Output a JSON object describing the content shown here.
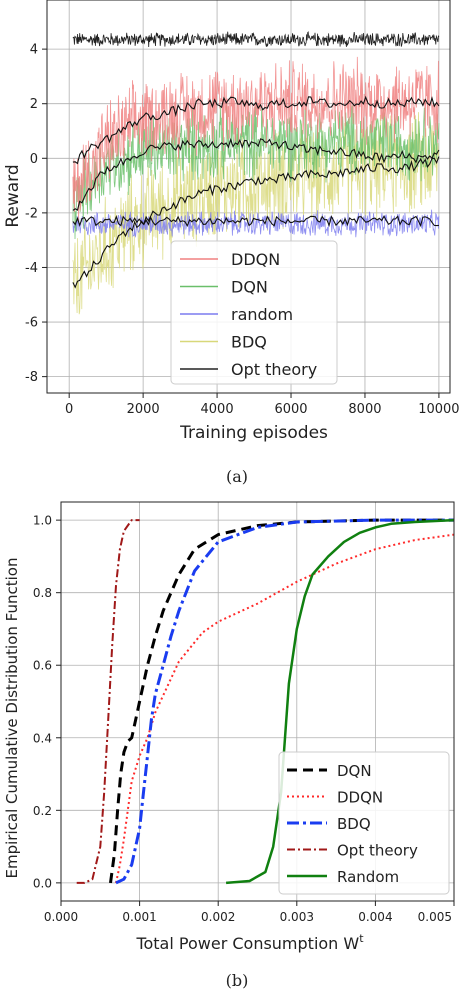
{
  "chart_data": [
    {
      "id": "a",
      "type": "line",
      "caption": "(a)",
      "xlabel": "Training episodes",
      "ylabel": "Reward",
      "xlim": [
        -600,
        10300
      ],
      "ylim": [
        -8.6,
        5.8
      ],
      "xticks": [
        0,
        2000,
        4000,
        6000,
        8000,
        10000
      ],
      "yticks": [
        -8,
        -6,
        -4,
        -2,
        0,
        2,
        4
      ],
      "grid": true,
      "legend_position": "lower-center",
      "series": [
        {
          "name": "DDQN",
          "color": "#f08080",
          "raw_mean": [
            -1.5,
            -0.5,
            0.5,
            1.0,
            1.4,
            1.6,
            1.7,
            1.8,
            1.9,
            2.0,
            2.0,
            2.0,
            2.1,
            2.1,
            2.1,
            2.1,
            2.1,
            2.1,
            2.1,
            2.1,
            2.1
          ],
          "raw_noise": 1.5,
          "smooth": [
            -0.3,
            0.3,
            0.7,
            1.1,
            1.5,
            1.6,
            1.8,
            2.0,
            2.0,
            2.1,
            1.9,
            2.0,
            2.0,
            2.1,
            2.0,
            2.0,
            2.1,
            2.0,
            2.0,
            2.1,
            2.0
          ]
        },
        {
          "name": "DQN",
          "color": "#6abf6a",
          "raw_mean": [
            -2.0,
            -1.0,
            -0.3,
            0.0,
            0.2,
            0.3,
            0.4,
            0.5,
            0.5,
            0.6,
            0.6,
            0.6,
            0.6,
            0.6,
            0.6,
            0.6,
            0.6,
            0.6,
            0.6,
            0.6,
            0.6
          ],
          "raw_noise": 1.3,
          "smooth": [
            -2.2,
            -1.2,
            -0.4,
            -0.1,
            0.3,
            0.4,
            0.5,
            0.5,
            0.5,
            0.6,
            0.5,
            0.6,
            0.4,
            0.3,
            0.3,
            0.2,
            0.1,
            0.0,
            0.1,
            0.0,
            0.2
          ]
        },
        {
          "name": "random",
          "color": "#7b7bef",
          "raw_mean": [
            -2.4,
            -2.4,
            -2.4,
            -2.4,
            -2.4,
            -2.4,
            -2.4,
            -2.4,
            -2.4,
            -2.4,
            -2.4,
            -2.4,
            -2.4,
            -2.4,
            -2.4,
            -2.4,
            -2.4,
            -2.4,
            -2.4,
            -2.4,
            -2.4
          ],
          "raw_noise": 0.45,
          "smooth": [
            -2.3,
            -2.3,
            -2.3,
            -2.3,
            -2.3,
            -2.3,
            -2.3,
            -2.3,
            -2.3,
            -2.3,
            -2.3,
            -2.3,
            -2.3,
            -2.3,
            -2.3,
            -2.3,
            -2.3,
            -2.3,
            -2.3,
            -2.3,
            -2.3
          ]
        },
        {
          "name": "BDQ",
          "color": "#d8d87a",
          "raw_mean": [
            -5.0,
            -4.0,
            -3.3,
            -2.7,
            -2.2,
            -1.8,
            -1.6,
            -1.3,
            -1.1,
            -1.0,
            -0.9,
            -0.8,
            -0.7,
            -0.6,
            -0.5,
            -0.5,
            -0.4,
            -0.3,
            -0.3,
            -0.2,
            -0.2
          ],
          "raw_noise": 1.8,
          "smooth": [
            -4.8,
            -4.2,
            -3.4,
            -2.7,
            -2.3,
            -1.9,
            -1.6,
            -1.3,
            -1.1,
            -1.0,
            -0.8,
            -0.8,
            -0.7,
            -0.6,
            -0.6,
            -0.5,
            -0.4,
            -0.3,
            -0.4,
            -0.2,
            -0.1
          ]
        },
        {
          "name": "Opt theory",
          "color": "#222222",
          "raw_mean": [
            4.35,
            4.35,
            4.35,
            4.35,
            4.35,
            4.35,
            4.35,
            4.35,
            4.35,
            4.35,
            4.35,
            4.35,
            4.35,
            4.35,
            4.35,
            4.35,
            4.35,
            4.35,
            4.35,
            4.35,
            4.35
          ],
          "raw_noise": 0.25,
          "smooth": []
        }
      ]
    },
    {
      "id": "b",
      "type": "line",
      "caption": "(b)",
      "xlabel": "Total Power Consumption W",
      "xlabel_sup": "t",
      "ylabel": "Empirical Cumulative Distribution Function",
      "xlim": [
        0,
        0.005
      ],
      "ylim": [
        -0.05,
        1.05
      ],
      "xticks": [
        0.0,
        0.001,
        0.002,
        0.003,
        0.004,
        0.005
      ],
      "xtick_labels": [
        "0.000",
        "0.001",
        "0.002",
        "0.003",
        "0.004",
        "0.005"
      ],
      "yticks": [
        0.0,
        0.2,
        0.4,
        0.6,
        0.8,
        1.0
      ],
      "ytick_labels": [
        "0.0",
        "0.2",
        "0.4",
        "0.6",
        "0.8",
        "1.0"
      ],
      "grid": true,
      "legend_position": "lower-right",
      "series": [
        {
          "name": "DQN",
          "color": "#000000",
          "dash": "10,6",
          "width": 3,
          "x": [
            0.00063,
            0.00068,
            0.00072,
            0.00076,
            0.0008,
            0.00085,
            0.0009,
            0.00095,
            0.001,
            0.0011,
            0.0012,
            0.0013,
            0.0015,
            0.0017,
            0.002,
            0.0025,
            0.003,
            0.004,
            0.005
          ],
          "y": [
            0.0,
            0.08,
            0.2,
            0.3,
            0.36,
            0.39,
            0.4,
            0.45,
            0.5,
            0.6,
            0.68,
            0.75,
            0.85,
            0.92,
            0.96,
            0.985,
            0.995,
            1.0,
            1.0
          ]
        },
        {
          "name": "DDQN",
          "color": "#ff2a2a",
          "dash": "2,3",
          "width": 2,
          "x": [
            0.0007,
            0.00075,
            0.0008,
            0.00085,
            0.0009,
            0.001,
            0.0011,
            0.0012,
            0.0015,
            0.0018,
            0.002,
            0.0025,
            0.003,
            0.0035,
            0.004,
            0.0045,
            0.005
          ],
          "y": [
            0.0,
            0.05,
            0.12,
            0.2,
            0.28,
            0.35,
            0.4,
            0.47,
            0.61,
            0.69,
            0.72,
            0.77,
            0.83,
            0.88,
            0.92,
            0.945,
            0.96
          ]
        },
        {
          "name": "BDQ",
          "color": "#1a3cf0",
          "dash": "12,4,3,4",
          "width": 3,
          "x": [
            0.0007,
            0.0008,
            0.0009,
            0.001,
            0.00105,
            0.0011,
            0.00115,
            0.0012,
            0.0013,
            0.0014,
            0.0015,
            0.0017,
            0.002,
            0.0025,
            0.003,
            0.004,
            0.005
          ],
          "y": [
            0.0,
            0.01,
            0.05,
            0.15,
            0.25,
            0.35,
            0.45,
            0.52,
            0.6,
            0.68,
            0.75,
            0.86,
            0.94,
            0.98,
            0.995,
            1.0,
            1.0
          ]
        },
        {
          "name": "Opt theory",
          "color": "#a01818",
          "dash": "8,3,2,3",
          "width": 2,
          "x": [
            0.0002,
            0.0003,
            0.0004,
            0.0005,
            0.00055,
            0.0006,
            0.00065,
            0.0007,
            0.00075,
            0.0008,
            0.0009,
            0.001
          ],
          "y": [
            0.0,
            0.0,
            0.01,
            0.1,
            0.25,
            0.45,
            0.65,
            0.82,
            0.92,
            0.97,
            1.0,
            1.0
          ]
        },
        {
          "name": "Random",
          "color": "#108010",
          "dash": "",
          "width": 2.5,
          "x": [
            0.0021,
            0.0024,
            0.0026,
            0.0027,
            0.0028,
            0.00285,
            0.0029,
            0.003,
            0.0031,
            0.0032,
            0.0034,
            0.0036,
            0.0038,
            0.004,
            0.0042,
            0.0045,
            0.005
          ],
          "y": [
            0.0,
            0.005,
            0.03,
            0.1,
            0.25,
            0.4,
            0.55,
            0.7,
            0.79,
            0.85,
            0.9,
            0.94,
            0.965,
            0.98,
            0.99,
            0.995,
            1.0
          ]
        }
      ]
    }
  ]
}
